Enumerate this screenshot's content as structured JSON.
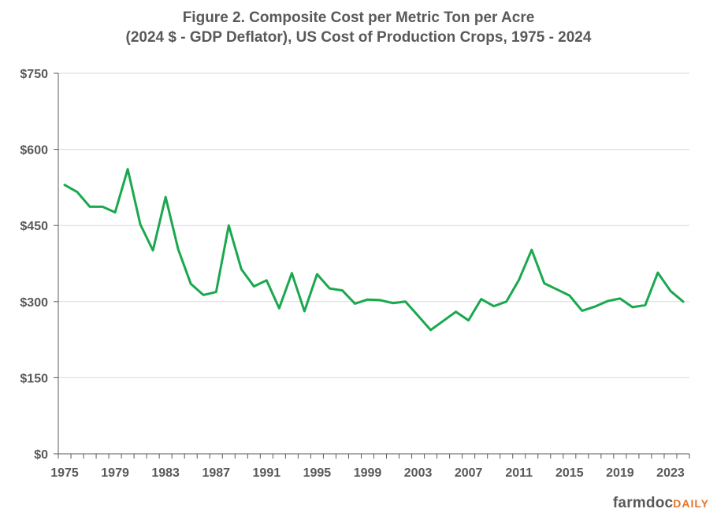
{
  "chart_data": {
    "type": "line",
    "title": "Figure  2. Composite  Cost per Metric  Ton per Acre",
    "subtitle": "(2024 $ - GDP Deflator),  US Cost of Production  Crops,  1975 - 2024",
    "xlabel": "",
    "ylabel": "",
    "x": [
      1975,
      1976,
      1977,
      1978,
      1979,
      1980,
      1981,
      1982,
      1983,
      1984,
      1985,
      1986,
      1987,
      1988,
      1989,
      1990,
      1991,
      1992,
      1993,
      1994,
      1995,
      1996,
      1997,
      1998,
      1999,
      2000,
      2001,
      2002,
      2003,
      2004,
      2005,
      2006,
      2007,
      2008,
      2009,
      2010,
      2011,
      2012,
      2013,
      2014,
      2015,
      2016,
      2017,
      2018,
      2019,
      2020,
      2021,
      2022,
      2023,
      2024
    ],
    "series": [
      {
        "color": "#1aa84e",
        "values": [
          530,
          516,
          487,
          487,
          476,
          561,
          452,
          401,
          506,
          403,
          335,
          313,
          319,
          450,
          364,
          330,
          342,
          287,
          356,
          281,
          354,
          326,
          322,
          296,
          304,
          303,
          297,
          300,
          272,
          244,
          262,
          280,
          263,
          305,
          291,
          300,
          343,
          402,
          336,
          324,
          312,
          282,
          290,
          301,
          306,
          289,
          293,
          357,
          321,
          300
        ]
      }
    ],
    "x_ticks": [
      "1975",
      "1979",
      "1983",
      "1987",
      "1991",
      "1995",
      "1999",
      "2003",
      "2007",
      "2011",
      "2015",
      "2019",
      "2023"
    ],
    "y_ticks": [
      "$0",
      "$150",
      "$300",
      "$450",
      "$600",
      "$750"
    ],
    "y_tick_values": [
      0,
      150,
      300,
      450,
      600,
      750
    ],
    "xlim": [
      1975,
      2024
    ],
    "ylim": [
      0,
      750
    ],
    "grid": true,
    "legend": "none"
  },
  "brand": {
    "part1": "farmdoc",
    "part2": "DAILY"
  }
}
